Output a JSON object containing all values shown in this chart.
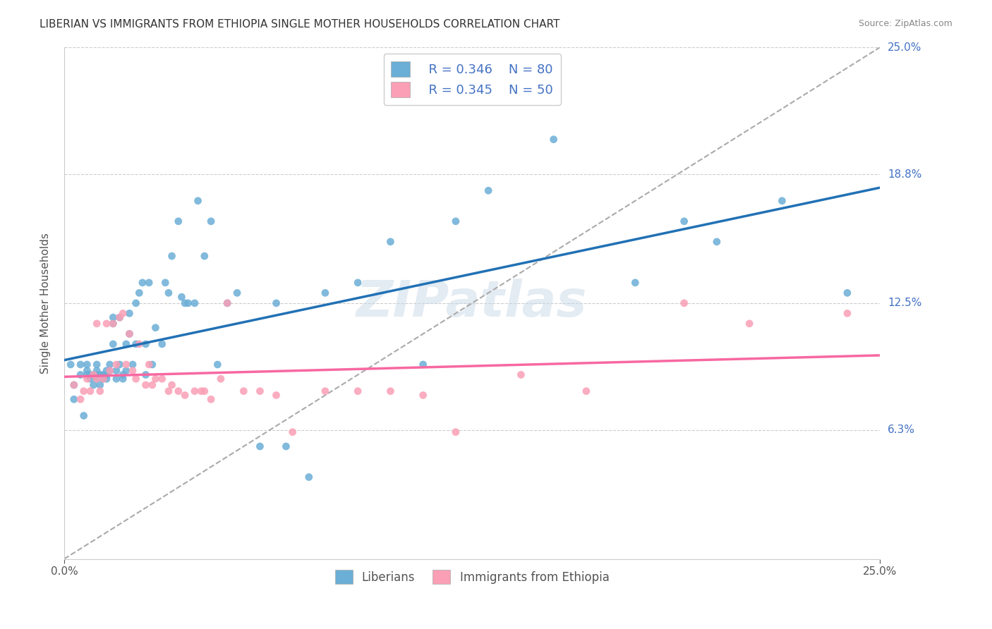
{
  "title": "LIBERIAN VS IMMIGRANTS FROM ETHIOPIA SINGLE MOTHER HOUSEHOLDS CORRELATION CHART",
  "source": "Source: ZipAtlas.com",
  "xlabel": "",
  "ylabel": "Single Mother Households",
  "xlim": [
    0.0,
    0.25
  ],
  "ylim": [
    0.0,
    0.25
  ],
  "xtick_labels": [
    "0.0%",
    "25.0%"
  ],
  "ytick_labels": [
    "6.3%",
    "12.5%",
    "18.8%",
    "25.0%"
  ],
  "ytick_positions": [
    0.063,
    0.125,
    0.188,
    0.25
  ],
  "right_ytick_labels": [
    "25.0%",
    "18.8%",
    "12.5%",
    "6.3%"
  ],
  "blue_color": "#6baed6",
  "pink_color": "#fa9fb5",
  "blue_line_color": "#2171b5",
  "pink_line_color": "#f768a1",
  "dashed_line_color": "#aaaaaa",
  "legend_R1": "R = 0.346",
  "legend_N1": "N = 80",
  "legend_R2": "R = 0.345",
  "legend_N2": "N = 50",
  "legend_label1": "Liberians",
  "legend_label2": "Immigrants from Ethiopia",
  "watermark": "ZIPatlas",
  "blue_scatter_x": [
    0.002,
    0.003,
    0.003,
    0.005,
    0.005,
    0.006,
    0.007,
    0.007,
    0.007,
    0.008,
    0.008,
    0.009,
    0.009,
    0.01,
    0.01,
    0.01,
    0.01,
    0.011,
    0.011,
    0.012,
    0.012,
    0.013,
    0.013,
    0.013,
    0.014,
    0.014,
    0.015,
    0.015,
    0.015,
    0.016,
    0.016,
    0.017,
    0.017,
    0.018,
    0.018,
    0.019,
    0.019,
    0.02,
    0.02,
    0.021,
    0.022,
    0.022,
    0.023,
    0.024,
    0.025,
    0.025,
    0.026,
    0.027,
    0.028,
    0.03,
    0.031,
    0.032,
    0.033,
    0.035,
    0.036,
    0.037,
    0.038,
    0.04,
    0.041,
    0.043,
    0.045,
    0.047,
    0.05,
    0.053,
    0.06,
    0.065,
    0.068,
    0.075,
    0.08,
    0.09,
    0.1,
    0.11,
    0.12,
    0.13,
    0.15,
    0.175,
    0.19,
    0.2,
    0.22,
    0.24
  ],
  "blue_scatter_y": [
    0.095,
    0.085,
    0.078,
    0.09,
    0.095,
    0.07,
    0.09,
    0.092,
    0.095,
    0.088,
    0.09,
    0.085,
    0.09,
    0.092,
    0.09,
    0.088,
    0.095,
    0.085,
    0.09,
    0.09,
    0.088,
    0.09,
    0.092,
    0.088,
    0.092,
    0.095,
    0.115,
    0.118,
    0.105,
    0.088,
    0.092,
    0.095,
    0.118,
    0.088,
    0.09,
    0.105,
    0.092,
    0.11,
    0.12,
    0.095,
    0.105,
    0.125,
    0.13,
    0.135,
    0.09,
    0.105,
    0.135,
    0.095,
    0.113,
    0.105,
    0.135,
    0.13,
    0.148,
    0.165,
    0.128,
    0.125,
    0.125,
    0.125,
    0.175,
    0.148,
    0.165,
    0.095,
    0.125,
    0.13,
    0.055,
    0.125,
    0.055,
    0.04,
    0.13,
    0.135,
    0.155,
    0.095,
    0.165,
    0.18,
    0.205,
    0.135,
    0.165,
    0.155,
    0.175,
    0.13
  ],
  "pink_scatter_x": [
    0.003,
    0.005,
    0.006,
    0.007,
    0.008,
    0.009,
    0.01,
    0.01,
    0.011,
    0.012,
    0.013,
    0.014,
    0.015,
    0.016,
    0.017,
    0.018,
    0.019,
    0.02,
    0.021,
    0.022,
    0.023,
    0.025,
    0.026,
    0.027,
    0.028,
    0.03,
    0.032,
    0.033,
    0.035,
    0.037,
    0.04,
    0.042,
    0.043,
    0.045,
    0.048,
    0.05,
    0.055,
    0.06,
    0.065,
    0.07,
    0.08,
    0.09,
    0.1,
    0.11,
    0.12,
    0.14,
    0.16,
    0.19,
    0.21,
    0.24
  ],
  "pink_scatter_y": [
    0.085,
    0.078,
    0.082,
    0.088,
    0.082,
    0.09,
    0.088,
    0.115,
    0.082,
    0.088,
    0.115,
    0.092,
    0.115,
    0.095,
    0.118,
    0.12,
    0.095,
    0.11,
    0.092,
    0.088,
    0.105,
    0.085,
    0.095,
    0.085,
    0.088,
    0.088,
    0.082,
    0.085,
    0.082,
    0.08,
    0.082,
    0.082,
    0.082,
    0.078,
    0.088,
    0.125,
    0.082,
    0.082,
    0.08,
    0.062,
    0.082,
    0.082,
    0.082,
    0.08,
    0.062,
    0.09,
    0.082,
    0.125,
    0.115,
    0.12
  ]
}
